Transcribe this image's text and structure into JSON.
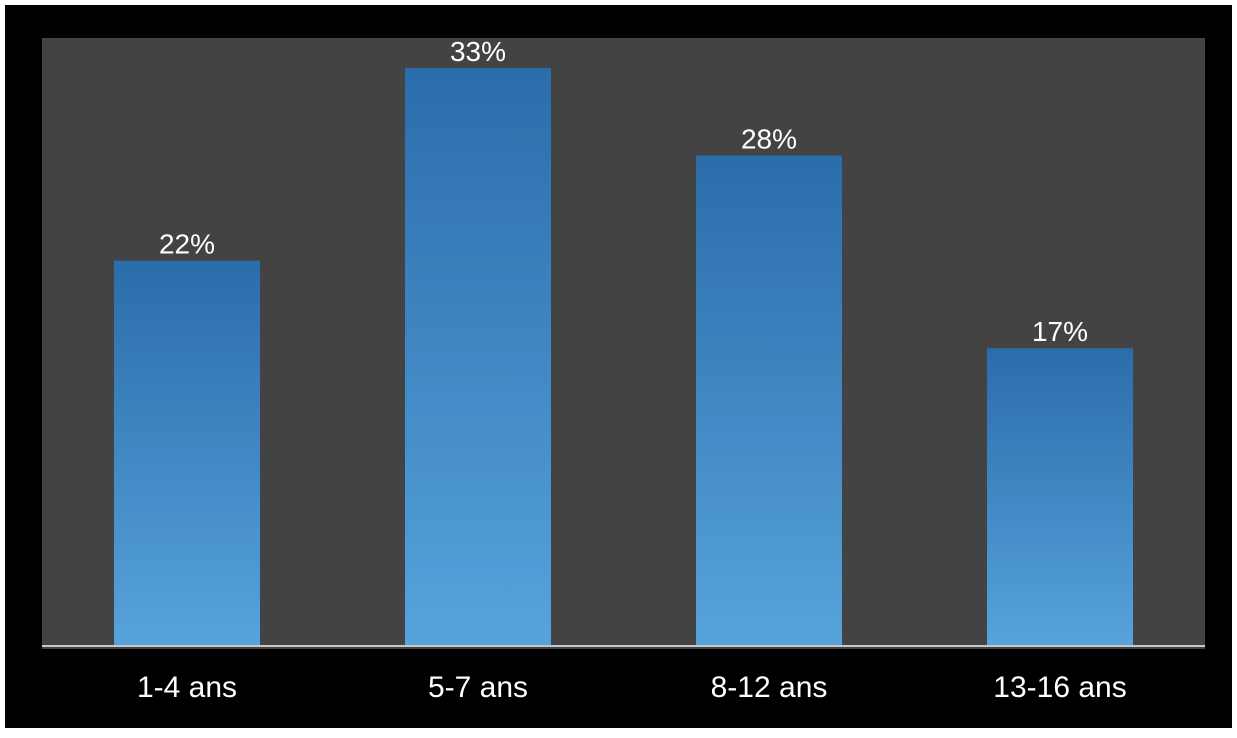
{
  "chart_data": {
    "type": "bar",
    "categories": [
      "1-4 ans",
      "5-7 ans",
      "8-12 ans",
      "13-16 ans"
    ],
    "values": [
      22,
      33,
      28,
      17
    ],
    "value_labels": [
      "22%",
      "33%",
      "28%",
      "17%"
    ],
    "unit": "%",
    "title": "",
    "xlabel": "",
    "ylabel": "",
    "ylim": [
      0,
      33
    ],
    "grid": false,
    "legend": "none"
  },
  "colors": {
    "frame": "#000000",
    "plot_background": "#434343",
    "bar_top": "#2a6daa",
    "bar_bottom": "#57a3dc",
    "axis_line": "#c8c8c8",
    "text": "#ffffff"
  }
}
